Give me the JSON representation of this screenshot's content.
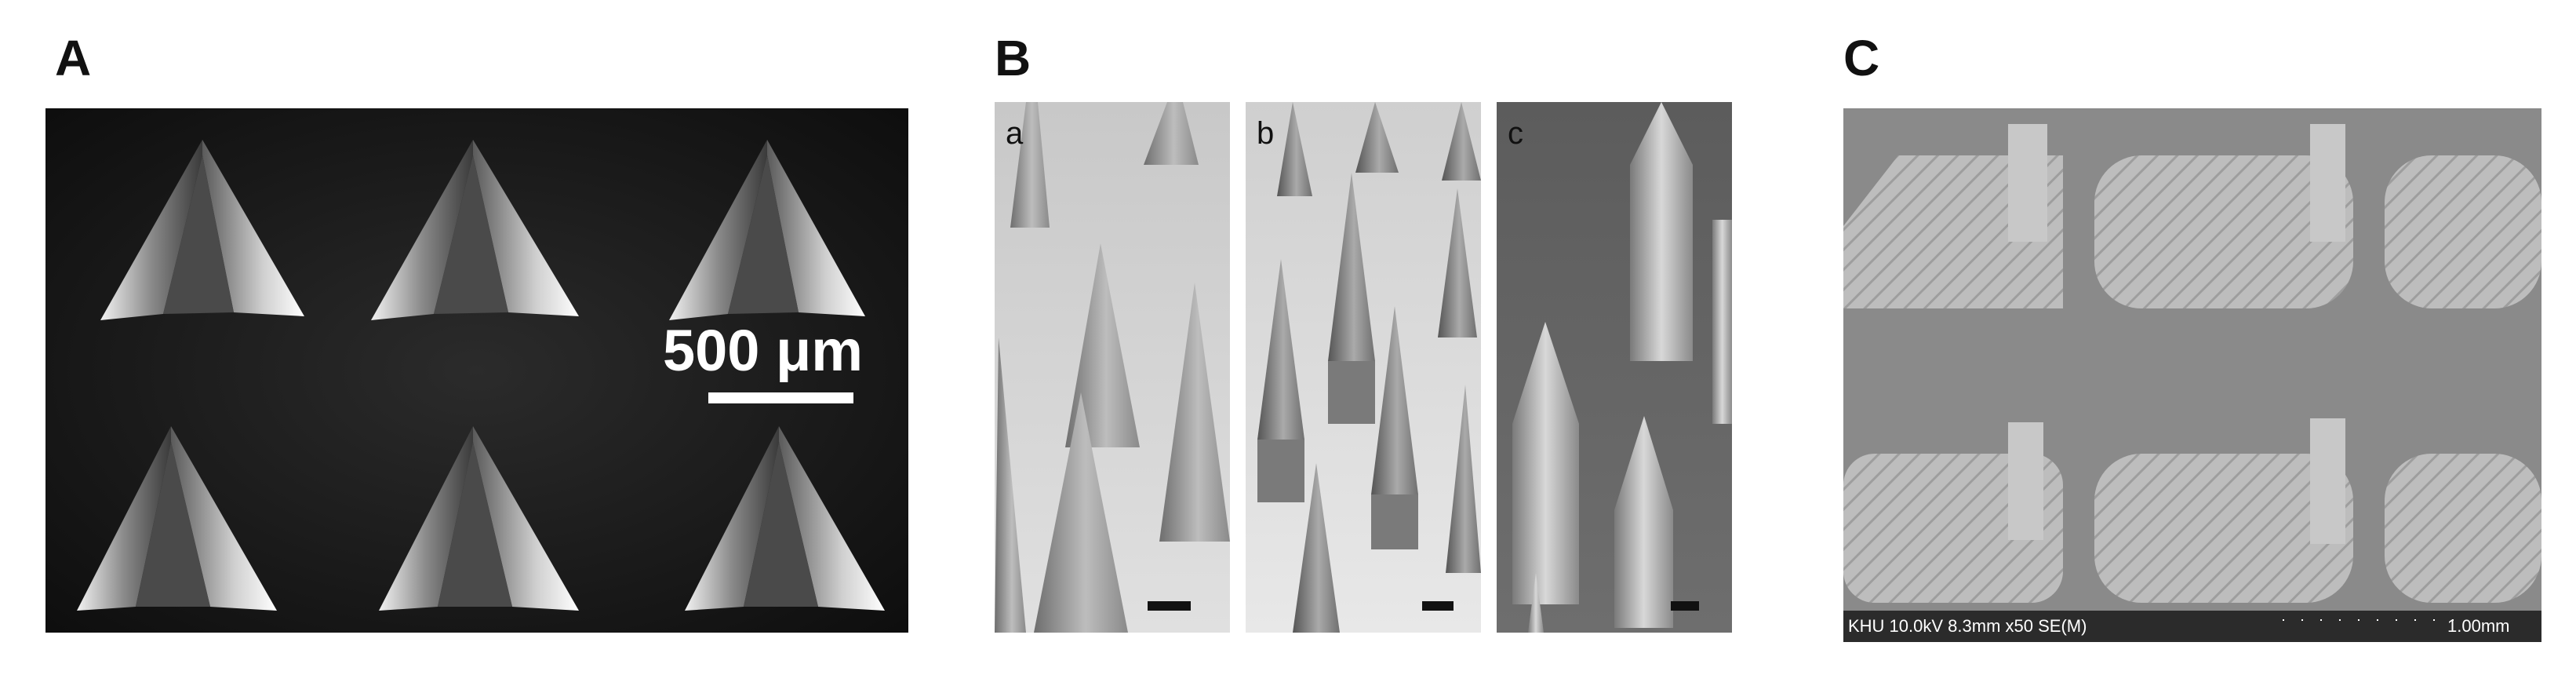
{
  "panels": {
    "a": {
      "label": "A",
      "scale_bar": "500 μm"
    },
    "b": {
      "label": "B",
      "sub": [
        "a",
        "b",
        "c"
      ]
    },
    "c": {
      "label": "C",
      "footer_left": "KHU 10.0kV 8.3mm x50 SE(M)",
      "footer_right": "1.00mm"
    }
  }
}
